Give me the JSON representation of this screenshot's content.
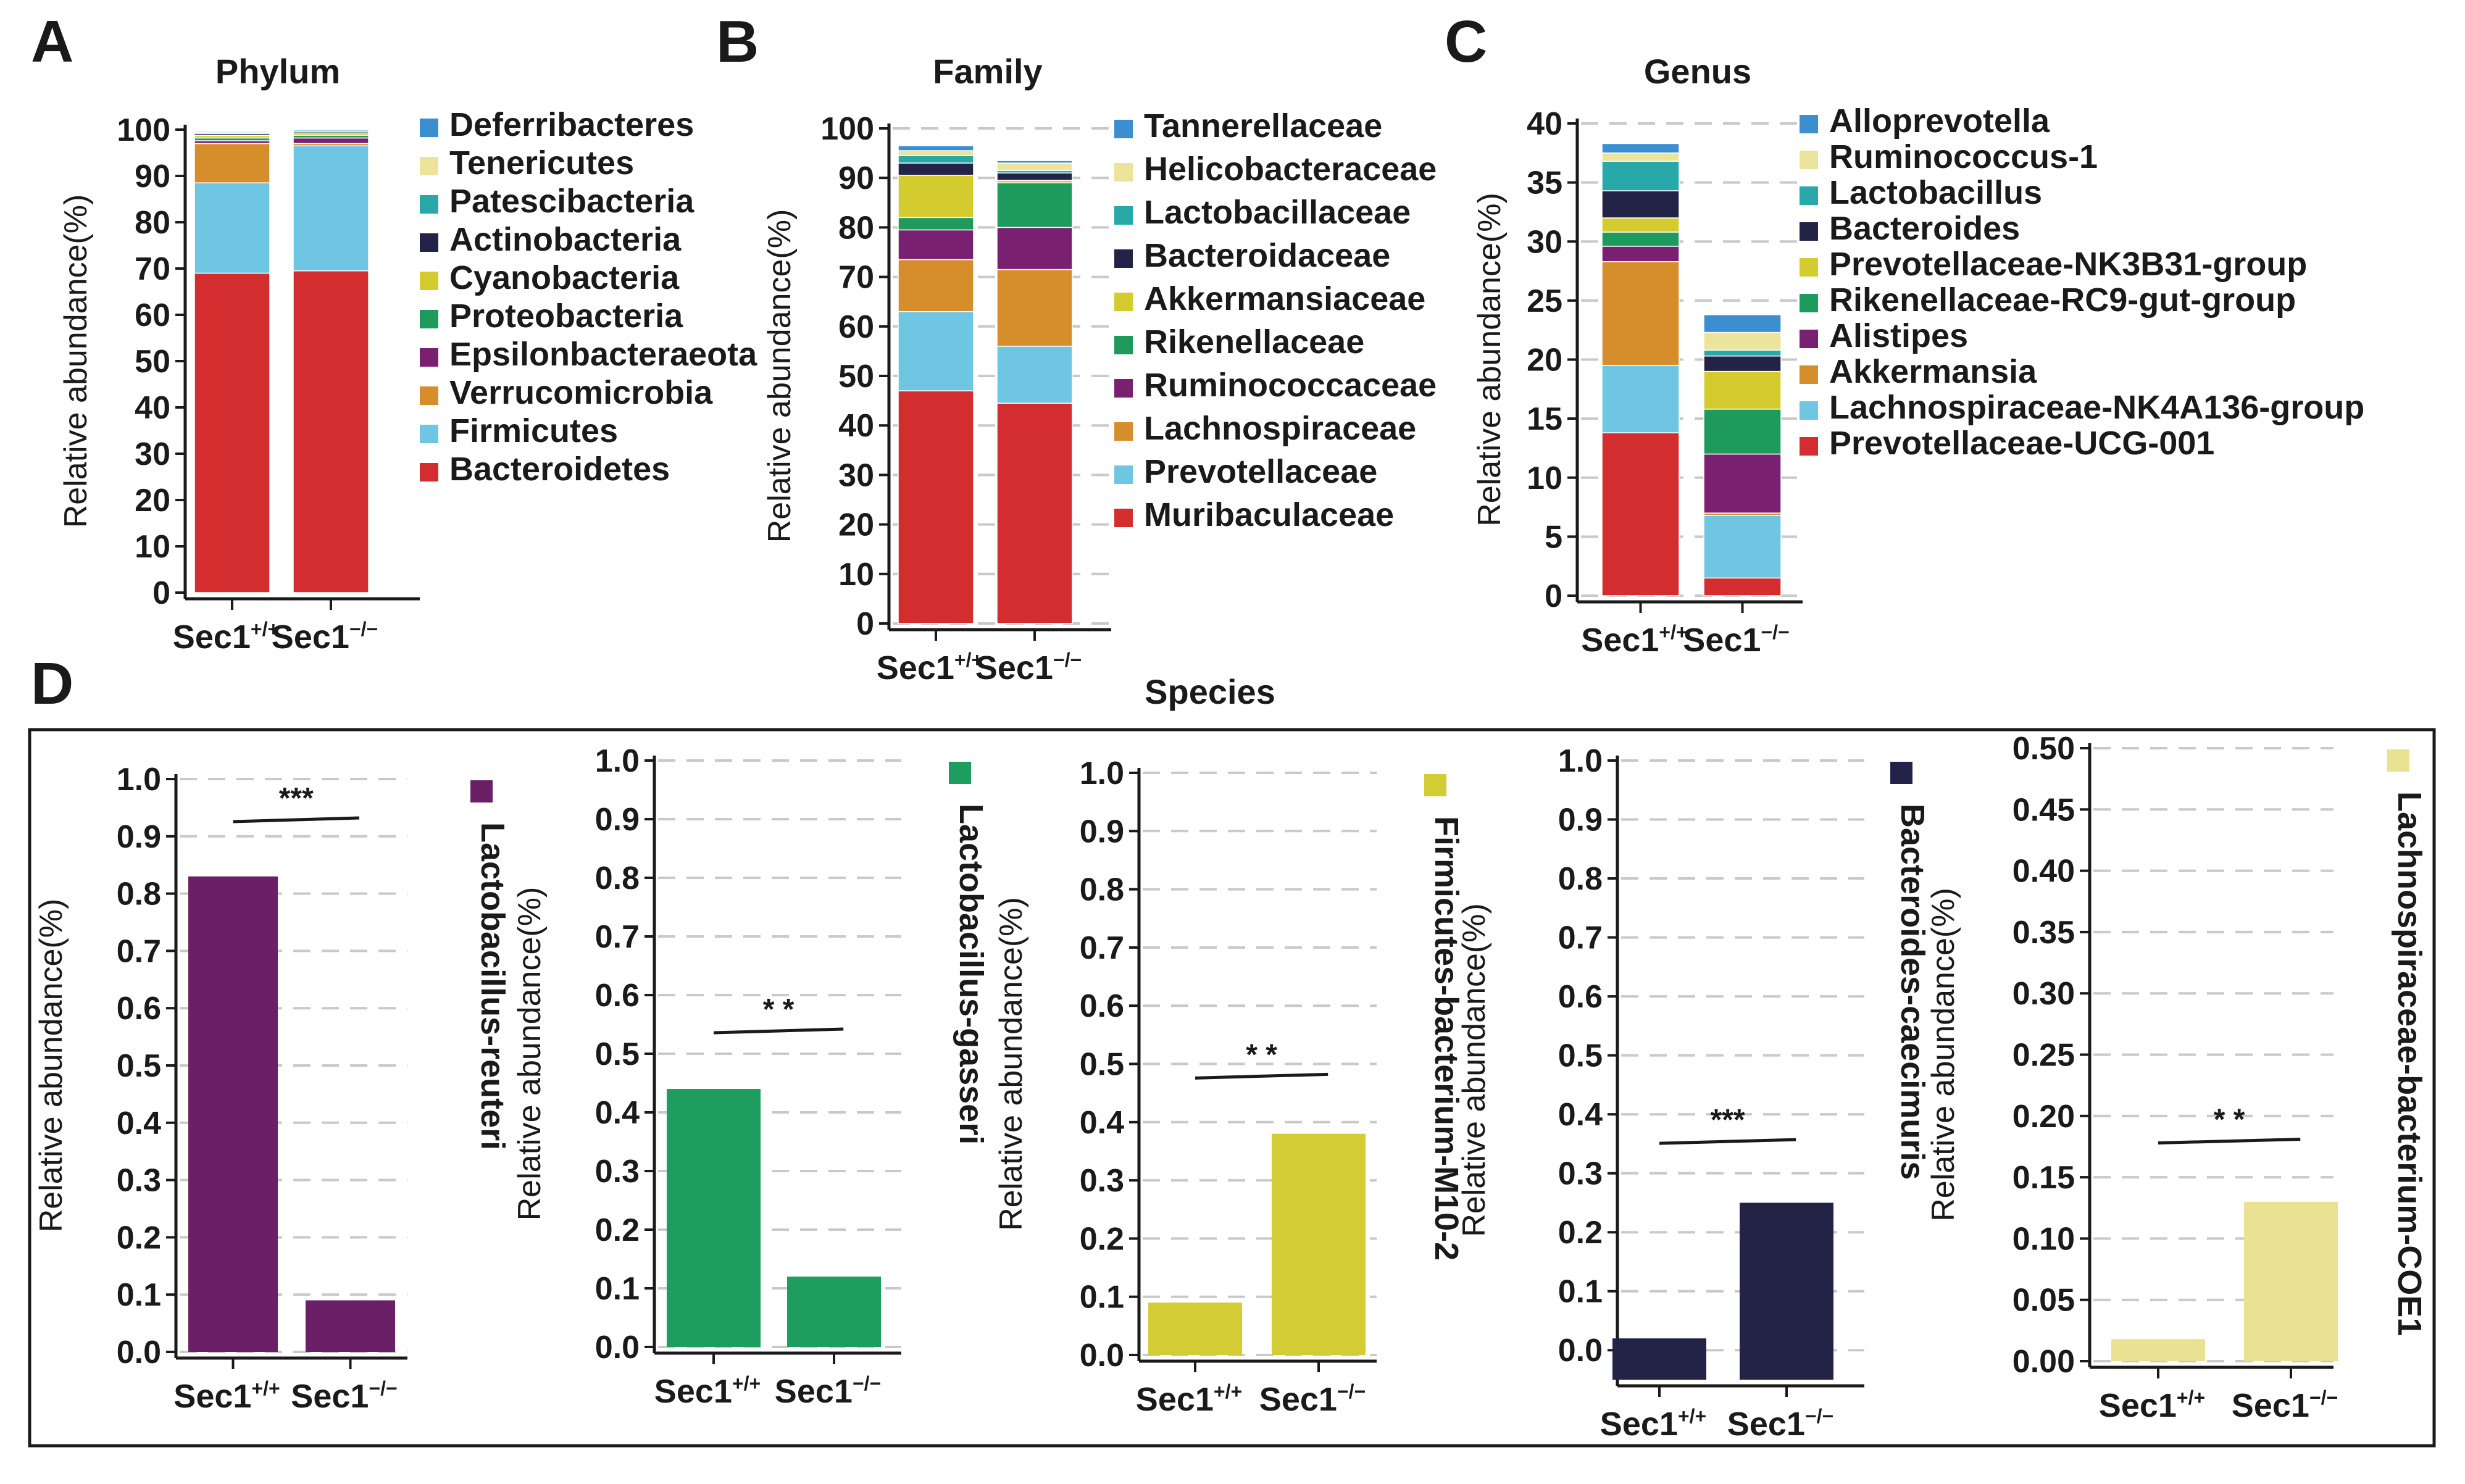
{
  "panel_labels": [
    "A",
    "B",
    "C",
    "D"
  ],
  "species_title": "Species",
  "chart_data": [
    {
      "panel": "A",
      "type": "bar",
      "stacked": true,
      "title": "Phylum",
      "ylabel": "Relative abundance(%)",
      "ylim": [
        0,
        100
      ],
      "yticks": [
        "0",
        "10",
        "20",
        "30",
        "40",
        "50",
        "60",
        "70",
        "80",
        "90",
        "100"
      ],
      "categories": [
        {
          "base": "Sec1",
          "sup": "+/+"
        },
        {
          "base": "Sec1",
          "sup": "−/−"
        }
      ],
      "series": [
        {
          "name": "Bacteroidetes",
          "color": "#d42d2f",
          "values": [
            69,
            69.5
          ]
        },
        {
          "name": "Firmicutes",
          "color": "#6ec6e3",
          "values": [
            19.5,
            27
          ]
        },
        {
          "name": "Verrucomicrobia",
          "color": "#d68d2c",
          "values": [
            8.5,
            0.5
          ]
        },
        {
          "name": "Epsilonbacteraeota",
          "color": "#7a2070",
          "values": [
            0.6,
            1.2
          ]
        },
        {
          "name": "Proteobacteria",
          "color": "#1e9a5c",
          "values": [
            0.6,
            0.6
          ]
        },
        {
          "name": "Cyanobacteria",
          "color": "#d4cc2e",
          "values": [
            0.5,
            0.5
          ]
        },
        {
          "name": "Actinobacteria",
          "color": "#232247",
          "values": [
            0.4,
            0.3
          ]
        },
        {
          "name": "Patescibacteria",
          "color": "#28a8a8",
          "values": [
            0.3,
            0.3
          ]
        },
        {
          "name": "Tenericutes",
          "color": "#ece49a",
          "values": [
            0.3,
            0.2
          ]
        },
        {
          "name": "Deferribacteres",
          "color": "#3b8ed0",
          "values": [
            0.2,
            0.2
          ]
        }
      ]
    },
    {
      "panel": "B",
      "type": "bar",
      "stacked": true,
      "title": "Family",
      "ylabel": "Relative abundance(%)",
      "ylim": [
        0,
        100
      ],
      "yticks": [
        "0",
        "10",
        "20",
        "30",
        "40",
        "50",
        "60",
        "70",
        "80",
        "90",
        "100"
      ],
      "categories": [
        {
          "base": "Sec1",
          "sup": "+/+"
        },
        {
          "base": "Sec1",
          "sup": "−/−"
        }
      ],
      "series": [
        {
          "name": "Muribaculaceae",
          "color": "#d42d2f",
          "values": [
            47,
            44.5
          ]
        },
        {
          "name": "Prevotellaceae",
          "color": "#6ec6e3",
          "values": [
            16,
            11.5
          ]
        },
        {
          "name": "Lachnospiraceae",
          "color": "#d68d2c",
          "values": [
            10.5,
            15.5
          ]
        },
        {
          "name": "Ruminococcaceae",
          "color": "#7a2070",
          "values": [
            6,
            8.5
          ]
        },
        {
          "name": "Rikenellaceae",
          "color": "#1e9a5c",
          "values": [
            2.5,
            9
          ]
        },
        {
          "name": "Akkermansiaceae",
          "color": "#d4cc2e",
          "values": [
            8.5,
            0.5
          ]
        },
        {
          "name": "Bacteroidaceae",
          "color": "#232247",
          "values": [
            2.5,
            1.5
          ]
        },
        {
          "name": "Lactobacillaceae",
          "color": "#28a8a8",
          "values": [
            1.5,
            0.5
          ]
        },
        {
          "name": "Helicobacteraceae",
          "color": "#ece49a",
          "values": [
            1,
            1.5
          ]
        },
        {
          "name": "Tannerellaceae",
          "color": "#3b8ed0",
          "values": [
            1,
            0.5
          ]
        }
      ]
    },
    {
      "panel": "C",
      "type": "bar",
      "stacked": true,
      "title": "Genus",
      "ylabel": "Relative abundance(%)",
      "ylim": [
        0,
        40
      ],
      "yticks": [
        "0",
        "5",
        "10",
        "15",
        "20",
        "25",
        "30",
        "35",
        "40"
      ],
      "categories": [
        {
          "base": "Sec1",
          "sup": "+/+"
        },
        {
          "base": "Sec1",
          "sup": "−/−"
        }
      ],
      "series": [
        {
          "name": "Prevotellaceae-UCG-001",
          "color": "#d42d2f",
          "values": [
            13.8,
            1.5
          ]
        },
        {
          "name": "Lachnospiraceae-NK4A136-group",
          "color": "#6ec6e3",
          "values": [
            5.7,
            5.3
          ]
        },
        {
          "name": "Akkermansia",
          "color": "#d68d2c",
          "values": [
            8.8,
            0.2
          ]
        },
        {
          "name": "Alistipes",
          "color": "#7a2070",
          "values": [
            1.3,
            5
          ]
        },
        {
          "name": "Rikenellaceae-RC9-gut-group",
          "color": "#1e9a5c",
          "values": [
            1.2,
            3.8
          ]
        },
        {
          "name": "Prevotellaceae-NK3B31-group",
          "color": "#d4cc2e",
          "values": [
            1.2,
            3.2
          ]
        },
        {
          "name": "Bacteroides",
          "color": "#232247",
          "values": [
            2.3,
            1.3
          ]
        },
        {
          "name": "Lactobacillus",
          "color": "#28a8a8",
          "values": [
            2.5,
            0.5
          ]
        },
        {
          "name": "Ruminococcus-1",
          "color": "#ece49a",
          "values": [
            0.7,
            1.5
          ]
        },
        {
          "name": "Alloprevotella",
          "color": "#3b8ed0",
          "values": [
            0.8,
            1.5
          ]
        }
      ]
    },
    {
      "panel": "D1",
      "type": "bar",
      "title": "Lactobacillus-reuteri",
      "color": "#6b1f66",
      "ylabel": "Relative abundance(%)",
      "ylim": [
        0,
        1.0
      ],
      "yticks": [
        "0.0",
        "0.1",
        "0.2",
        "0.3",
        "0.4",
        "0.5",
        "0.6",
        "0.7",
        "0.8",
        "0.9",
        "1.0"
      ],
      "categories": [
        {
          "base": "Sec1",
          "sup": "+/+"
        },
        {
          "base": "Sec1",
          "sup": "−/−"
        }
      ],
      "values": [
        0.83,
        0.09
      ],
      "significance": "***"
    },
    {
      "panel": "D2",
      "type": "bar",
      "title": "Lactobacillus-gasseri",
      "color": "#1d9e5f",
      "ylabel": "Relative abundance(%)",
      "ylim": [
        0,
        1.0
      ],
      "yticks": [
        "0.0",
        "0.1",
        "0.2",
        "0.3",
        "0.4",
        "0.5",
        "0.6",
        "0.7",
        "0.8",
        "0.9",
        "1.0"
      ],
      "categories": [
        {
          "base": "Sec1",
          "sup": "+/+"
        },
        {
          "base": "Sec1",
          "sup": "−/−"
        }
      ],
      "values": [
        0.44,
        0.12
      ],
      "significance": "* *"
    },
    {
      "panel": "D3",
      "type": "bar",
      "title": "Firmicutes-bacterium-M10-2",
      "color": "#d3cc34",
      "ylabel": "Relative abundance(%)",
      "ylim": [
        0,
        1.0
      ],
      "yticks": [
        "0.0",
        "0.1",
        "0.2",
        "0.3",
        "0.4",
        "0.5",
        "0.6",
        "0.7",
        "0.8",
        "0.9",
        "1.0"
      ],
      "categories": [
        {
          "base": "Sec1",
          "sup": "+/+"
        },
        {
          "base": "Sec1",
          "sup": "−/−"
        }
      ],
      "values": [
        0.09,
        0.38
      ],
      "significance": "* *"
    },
    {
      "panel": "D4",
      "type": "bar",
      "title": "Bacteroides-caecimuris",
      "color": "#232247",
      "ylabel": "Relative abundance(%)",
      "ylim": [
        -0.05,
        1.0
      ],
      "yticks": [
        "0.0",
        "0.1",
        "0.2",
        "0.3",
        "0.4",
        "0.5",
        "0.6",
        "0.7",
        "0.8",
        "0.9",
        "1.0"
      ],
      "categories": [
        {
          "base": "Sec1",
          "sup": "+/+"
        },
        {
          "base": "Sec1",
          "sup": "−/−"
        }
      ],
      "values": [
        0.02,
        0.25
      ],
      "significance": "***"
    },
    {
      "panel": "D5",
      "type": "bar",
      "title": "Lachnospiraceae-bacterium-COE1",
      "color": "#e8e292",
      "ylabel": "Relative abundance(%)",
      "ylim": [
        0,
        0.5
      ],
      "yticks": [
        "0.00",
        "0.05",
        "0.10",
        "0.15",
        "0.20",
        "0.25",
        "0.30",
        "0.35",
        "0.40",
        "0.45",
        "0.50"
      ],
      "categories": [
        {
          "base": "Sec1",
          "sup": "+/+"
        },
        {
          "base": "Sec1",
          "sup": "−/−"
        }
      ],
      "values": [
        0.018,
        0.13
      ],
      "significance": "* *"
    }
  ]
}
